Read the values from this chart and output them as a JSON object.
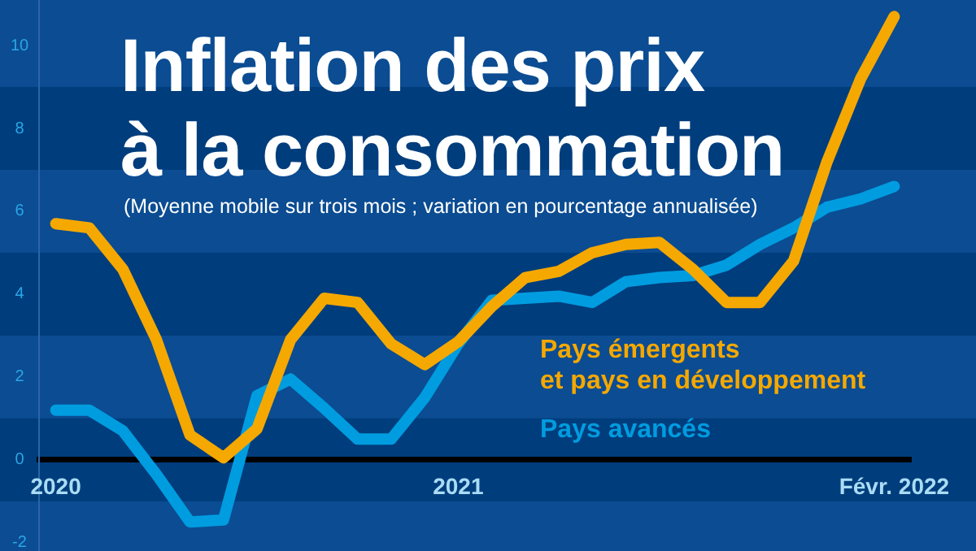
{
  "chart_data": {
    "type": "line",
    "title": "Inflation des prix\nà la consommation",
    "subtitle": "(Moyenne mobile sur trois mois ; variation en pourcentage annualisée)",
    "categories": [
      "2020",
      null,
      null,
      null,
      null,
      null,
      null,
      null,
      null,
      null,
      null,
      null,
      "2021",
      null,
      null,
      null,
      null,
      null,
      null,
      null,
      null,
      null,
      null,
      null,
      null,
      "Févr. 2022"
    ],
    "series": [
      {
        "name": "Pays émergents\net pays en développement",
        "color": "#f5a800",
        "values": [
          5.7,
          5.6,
          4.6,
          2.9,
          0.6,
          0.05,
          0.75,
          2.9,
          3.9,
          3.8,
          2.8,
          2.3,
          2.85,
          3.7,
          4.4,
          4.55,
          5.0,
          5.2,
          5.25,
          4.6,
          3.8,
          3.8,
          4.8,
          7.2,
          9.2,
          10.7
        ]
      },
      {
        "name": "Pays avancés",
        "color": "#009ce0",
        "values": [
          1.2,
          1.2,
          0.7,
          -0.35,
          -1.5,
          -1.45,
          1.55,
          1.95,
          1.25,
          0.5,
          0.5,
          1.5,
          2.8,
          3.85,
          3.9,
          3.95,
          3.8,
          4.3,
          4.4,
          4.45,
          4.7,
          5.2,
          5.6,
          6.1,
          6.3,
          6.6
        ]
      }
    ],
    "ylim": [
      -2.2,
      11.1
    ],
    "yticks": [
      -2,
      0,
      2,
      4,
      6,
      8,
      10
    ],
    "bands": [
      {
        "axis": "y",
        "from": 7,
        "to": 9,
        "color": "#003d7c"
      },
      {
        "axis": "y",
        "from": 3,
        "to": 5,
        "color": "#003d7c"
      },
      {
        "axis": "y",
        "from": -1,
        "to": 1,
        "color": "#003d7c"
      }
    ],
    "legend": false,
    "marker": "none",
    "line_style": "solid",
    "grid": false
  }
}
